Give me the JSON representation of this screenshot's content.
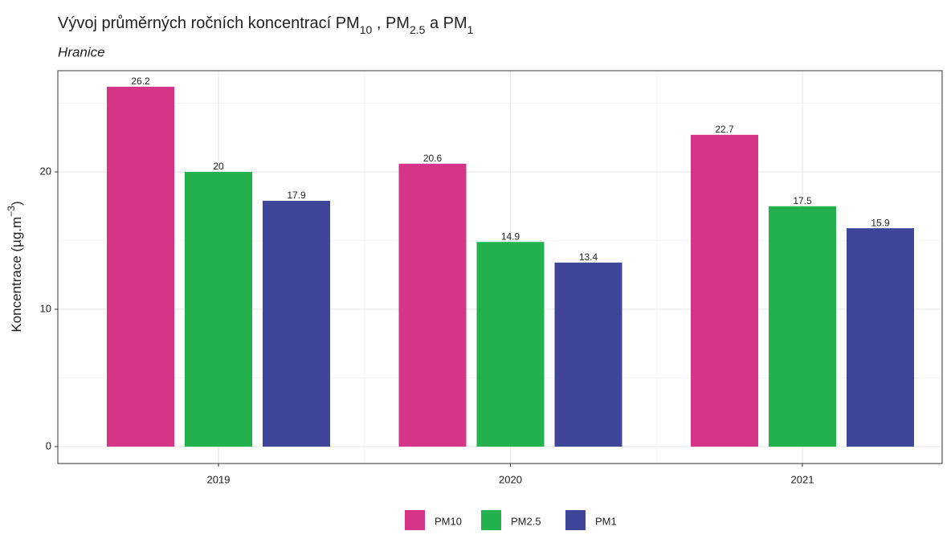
{
  "chart_data": {
    "type": "bar",
    "title": [
      "Vývoj průměrných ročních koncentrací PM",
      "10",
      " , PM",
      "2.5",
      " a PM",
      "1"
    ],
    "subtitle": "Hranice",
    "ylabel": [
      "Koncentrace (µg.m",
      "−3",
      ")"
    ],
    "categories": [
      "2019",
      "2020",
      "2021"
    ],
    "series": [
      {
        "name": "PM10",
        "color": "#d63487",
        "values": [
          26.2,
          20.6,
          22.7
        ]
      },
      {
        "name": "PM2.5",
        "color": "#22b14c",
        "values": [
          20,
          14.9,
          17.5
        ]
      },
      {
        "name": "PM1",
        "color": "#3f4699",
        "values": [
          17.9,
          13.4,
          15.9
        ]
      }
    ],
    "ylim": [
      -1.23,
      27.37
    ],
    "yticks": [
      0,
      10,
      20
    ],
    "yminor": [
      5,
      15,
      25
    ],
    "grid": true,
    "legend": "bottom"
  }
}
